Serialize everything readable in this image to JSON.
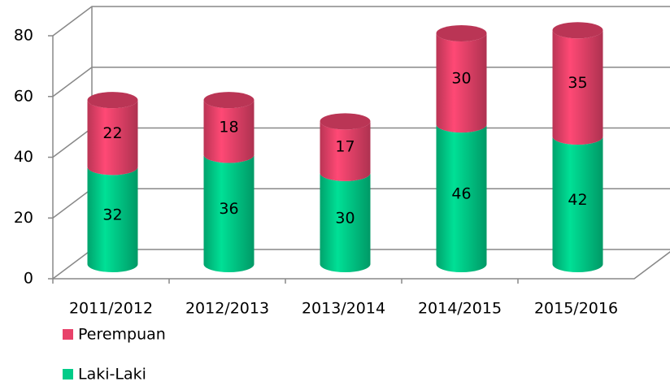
{
  "chart_data": {
    "type": "bar3d-stacked",
    "categories": [
      "2011/2012",
      "2012/2013",
      "2013/2014",
      "2014/2015",
      "2015/2016"
    ],
    "series": [
      {
        "name": "Laki-Laki",
        "color": "#00cc88",
        "values": [
          32,
          36,
          30,
          46,
          42
        ]
      },
      {
        "name": "Perempuan",
        "color": "#e8426a",
        "values": [
          22,
          18,
          17,
          30,
          35
        ]
      }
    ],
    "ylim": [
      0,
      80
    ],
    "yticks": [
      0,
      20,
      40,
      60,
      80
    ],
    "grid": true,
    "legend": "bottom-left"
  }
}
